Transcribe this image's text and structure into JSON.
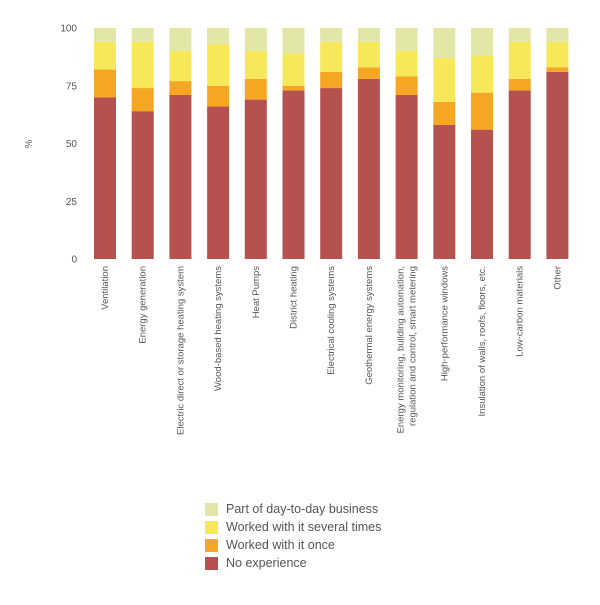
{
  "chart_data": {
    "type": "bar",
    "stacked": true,
    "normalized": true,
    "ylabel": "%",
    "ylim": [
      0,
      100
    ],
    "yticks": [
      0,
      25,
      50,
      75,
      100
    ],
    "categories": [
      "Ventilation",
      "Energy generation",
      "Electric direct or storage heating system",
      "Wood-based heating systems",
      "Heat Pumps",
      "District heating",
      "Electrical cooling systems",
      "Geothermal energy systems",
      [
        "Energy monitoring, building automation,",
        "regulation and control, smart metering"
      ],
      "High-performance windows",
      "Insulation of walls, roofs, floors, etc.",
      "Low-carbon materials",
      "Other"
    ],
    "series": [
      {
        "name": "No experience",
        "color": "#b5524f",
        "values": [
          70,
          64,
          71,
          66,
          69,
          73,
          74,
          78,
          71,
          58,
          56,
          73,
          81
        ]
      },
      {
        "name": "Worked with it once",
        "color": "#f5a623",
        "values": [
          12,
          10,
          6,
          9,
          9,
          2,
          7,
          5,
          8,
          10,
          16,
          5,
          2
        ]
      },
      {
        "name": "Worked with it several times",
        "color": "#f7e85a",
        "values": [
          12,
          20,
          13,
          18,
          12,
          14,
          13,
          11,
          11,
          19,
          16,
          16,
          11
        ]
      },
      {
        "name": "Part of day-to-day business",
        "color": "#e2e6a6",
        "values": [
          6,
          6,
          10,
          7,
          10,
          11,
          6,
          6,
          10,
          13,
          12,
          6,
          6
        ]
      }
    ],
    "legend_order": [
      "Part of day-to-day business",
      "Worked with it several times",
      "Worked with it once",
      "No experience"
    ],
    "legend_position": "bottom",
    "grid": false
  }
}
